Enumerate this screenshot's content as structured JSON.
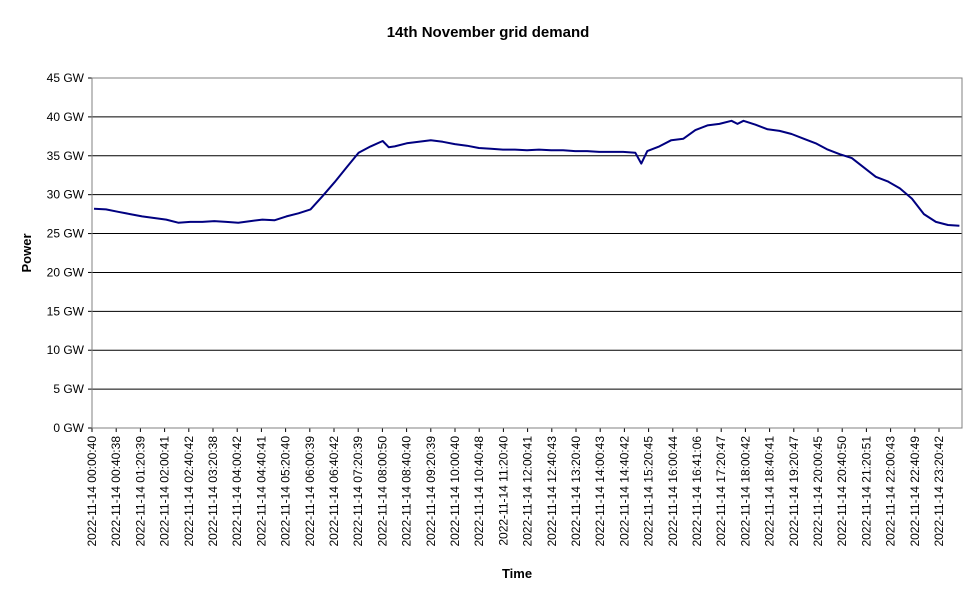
{
  "chart_data": {
    "type": "line",
    "title": "14th November grid demand",
    "xlabel": "Time",
    "ylabel": "Power",
    "ylim": [
      0,
      45
    ],
    "y_ticks": [
      "0 GW",
      "5 GW",
      "10 GW",
      "15 GW",
      "20 GW",
      "25 GW",
      "30 GW",
      "35 GW",
      "40 GW",
      "45 GW"
    ],
    "x_ticks": [
      "2022-11-14 00:00:40",
      "2022-11-14 00:40:38",
      "2022-11-14 01:20:39",
      "2022-11-14 02:00:41",
      "2022-11-14 02:40:42",
      "2022-11-14 03:20:38",
      "2022-11-14 04:00:42",
      "2022-11-14 04:40:41",
      "2022-11-14 05:20:40",
      "2022-11-14 06:00:39",
      "2022-11-14 06:40:42",
      "2022-11-14 07:20:39",
      "2022-11-14 08:00:50",
      "2022-11-14 08:40:40",
      "2022-11-14 09:20:39",
      "2022-11-14 10:00:40",
      "2022-11-14 10:40:48",
      "2022-11-14 11:20:40",
      "2022-11-14 12:00:41",
      "2022-11-14 12:40:43",
      "2022-11-14 13:20:40",
      "2022-11-14 14:00:43",
      "2022-11-14 14:40:42",
      "2022-11-14 15:20:45",
      "2022-11-14 16:00:44",
      "2022-11-14 16:41:06",
      "2022-11-14 17:20:47",
      "2022-11-14 18:00:42",
      "2022-11-14 18:40:41",
      "2022-11-14 19:20:47",
      "2022-11-14 20:00:45",
      "2022-11-14 20:40:50",
      "2022-11-14 21:20:51",
      "2022-11-14 22:00:43",
      "2022-11-14 22:40:49",
      "2022-11-14 23:20:42"
    ],
    "grid": "horizontal",
    "legend": "none",
    "series_color": "#000080",
    "series": [
      {
        "x": [
          "00:00",
          "00:20",
          "00:40",
          "01:00",
          "01:20",
          "01:40",
          "02:00",
          "02:20",
          "02:40",
          "03:00",
          "03:20",
          "03:40",
          "04:00",
          "04:20",
          "04:40",
          "05:00",
          "05:20",
          "05:40",
          "06:00",
          "06:20",
          "06:40",
          "07:00",
          "07:20",
          "07:40",
          "08:00",
          "08:10",
          "08:20",
          "08:40",
          "09:00",
          "09:20",
          "09:40",
          "10:00",
          "10:20",
          "10:40",
          "11:00",
          "11:20",
          "11:40",
          "12:00",
          "12:20",
          "12:40",
          "13:00",
          "13:20",
          "13:40",
          "14:00",
          "14:20",
          "14:40",
          "15:00",
          "15:10",
          "15:20",
          "15:40",
          "16:00",
          "16:20",
          "16:40",
          "17:00",
          "17:20",
          "17:40",
          "17:50",
          "18:00",
          "18:20",
          "18:40",
          "19:00",
          "19:20",
          "19:40",
          "20:00",
          "20:20",
          "20:40",
          "21:00",
          "21:20",
          "21:40",
          "22:00",
          "22:20",
          "22:40",
          "23:00",
          "23:20",
          "23:40",
          "23:59"
        ],
        "values": [
          28.2,
          28.1,
          27.8,
          27.5,
          27.2,
          27.0,
          26.8,
          26.4,
          26.5,
          26.5,
          26.6,
          26.5,
          26.4,
          26.6,
          26.8,
          26.7,
          27.2,
          27.6,
          28.1,
          29.8,
          31.6,
          33.5,
          35.4,
          36.2,
          36.9,
          36.1,
          36.2,
          36.6,
          36.8,
          37.0,
          36.8,
          36.5,
          36.3,
          36.0,
          35.9,
          35.8,
          35.8,
          35.7,
          35.8,
          35.7,
          35.7,
          35.6,
          35.6,
          35.5,
          35.5,
          35.5,
          35.4,
          34.0,
          35.6,
          36.2,
          37.0,
          37.2,
          38.3,
          38.9,
          39.1,
          39.5,
          39.1,
          39.5,
          39.0,
          38.4,
          38.2,
          37.8,
          37.2,
          36.6,
          35.8,
          35.2,
          34.7,
          33.5,
          32.3,
          31.7,
          30.8,
          29.5,
          27.5,
          26.5,
          26.1,
          26.0
        ]
      }
    ]
  }
}
